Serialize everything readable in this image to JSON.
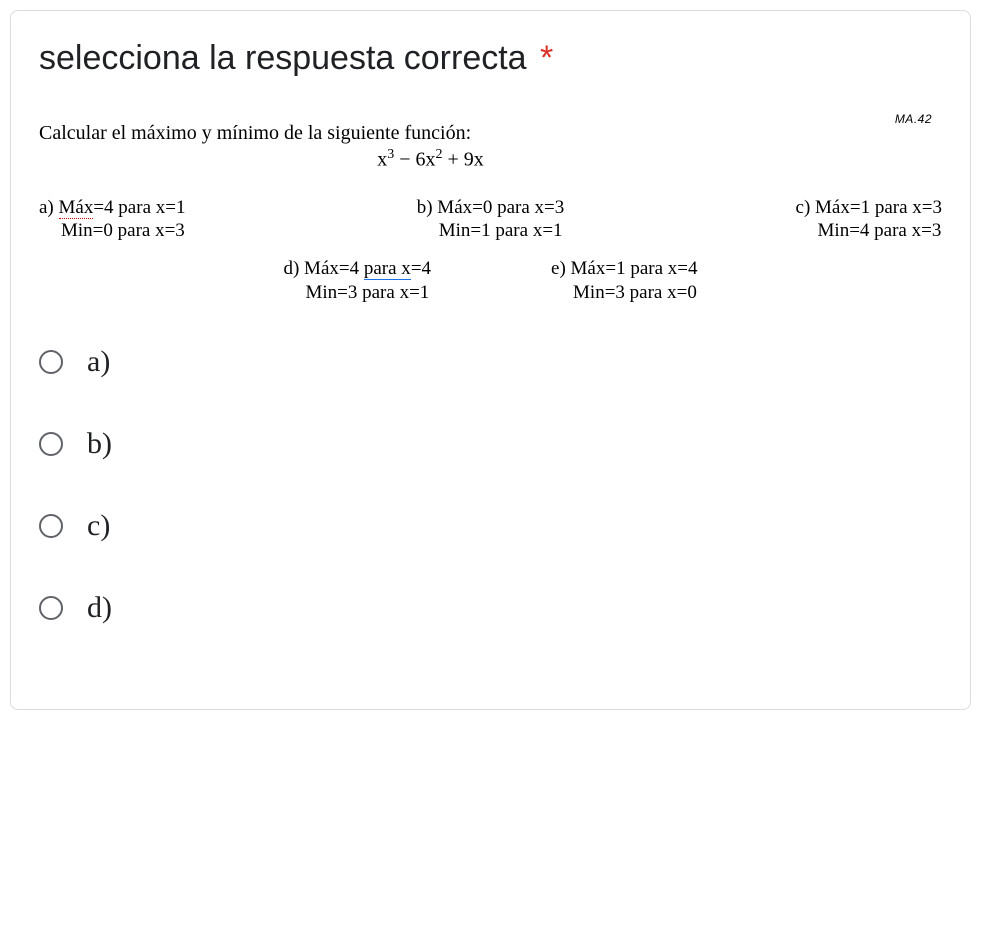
{
  "question": {
    "title": "selecciona la respuesta correcta",
    "required": true,
    "asterisk_color": "#d93025"
  },
  "watermark": "MA.42",
  "problem": {
    "statement": "Calcular el máximo y mínimo de la siguiente función:",
    "formula_html": "x<sup>3</sup> − 6x<sup>2</sup> + 9x"
  },
  "image_options": {
    "a": {
      "line1_prefix": "a) ",
      "line1_core": "Máx",
      "line1_suffix": "=4   para x=1",
      "line2": "Min=0   para x=3",
      "decoration": "red-dotted"
    },
    "b": {
      "line1": "b) Máx=0   para x=3",
      "line2": "Min=1   para x=1"
    },
    "c": {
      "line1": "c) Máx=1   para x=3",
      "line2": "Min=4   para x=3"
    },
    "d": {
      "line1_prefix": "d) Máx=4   ",
      "line1_core": "para  x",
      "line1_suffix": "=4",
      "line2": "Min=3   para  x=1",
      "decoration": "blue-underline"
    },
    "e": {
      "line1": "e) Máx=1   para  x=4",
      "line2": "Min=3   para  x=0"
    }
  },
  "radio": {
    "a": "a)",
    "b": "b)",
    "c": "c)",
    "d": "d)"
  },
  "colors": {
    "text": "#202124",
    "radio_border": "#5f6368",
    "card_border": "#dadce0",
    "background": "#ffffff"
  }
}
